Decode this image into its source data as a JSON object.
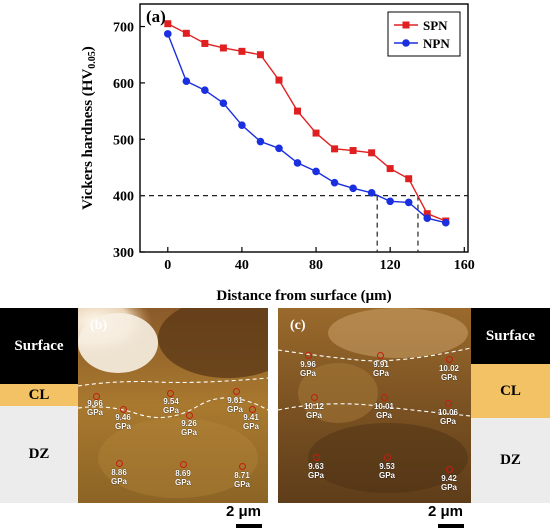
{
  "chart_data": {
    "type": "line",
    "panel_label": "(a)",
    "xlabel": "Distance from surface (μm)",
    "ylabel_main": "Vickers hardness (HV",
    "ylabel_sub": "0.05",
    "ylabel_end": ")",
    "xlim": [
      -15,
      162
    ],
    "ylim": [
      300,
      740
    ],
    "xticks": [
      0,
      40,
      80,
      120,
      160
    ],
    "yticks": [
      300,
      400,
      500,
      600,
      700
    ],
    "reference_line_y": 400,
    "reference_drops_x": [
      113,
      135
    ],
    "legend_position": "top-right",
    "series": [
      {
        "name": "SPN",
        "color": "#e02020",
        "marker": "square",
        "x": [
          0,
          10,
          20,
          30,
          40,
          50,
          60,
          70,
          80,
          90,
          100,
          110,
          120,
          130,
          140,
          150
        ],
        "y": [
          705,
          688,
          670,
          662,
          656,
          650,
          605,
          550,
          511,
          483,
          480,
          476,
          448,
          430,
          368,
          355
        ]
      },
      {
        "name": "NPN",
        "color": "#1a2fe0",
        "marker": "circle",
        "x": [
          0,
          10,
          20,
          30,
          40,
          50,
          60,
          70,
          80,
          90,
          100,
          110,
          120,
          130,
          140,
          150
        ],
        "y": [
          687,
          603,
          587,
          564,
          525,
          496,
          484,
          458,
          443,
          423,
          413,
          405,
          390,
          388,
          360,
          352
        ]
      }
    ]
  },
  "micrographs": {
    "left": {
      "label": "(b)",
      "layers": [
        {
          "label": "Surface",
          "color": "#000000",
          "text_color": "#ffffff"
        },
        {
          "label": "CL",
          "color": "#f2c265",
          "text_color": "#000000"
        },
        {
          "label": "DZ",
          "color": "#ececec",
          "text_color": "#000000"
        }
      ],
      "measurements": [
        {
          "value": "9.66",
          "unit": "GPa"
        },
        {
          "value": "9.46",
          "unit": "GPa"
        },
        {
          "value": "9.54",
          "unit": "GPa"
        },
        {
          "value": "9.26",
          "unit": "GPa"
        },
        {
          "value": "9.61",
          "unit": "GPa"
        },
        {
          "value": "9.41",
          "unit": "GPa"
        },
        {
          "value": "8.86",
          "unit": "GPa"
        },
        {
          "value": "8.69",
          "unit": "GPa"
        },
        {
          "value": "8.71",
          "unit": "GPa"
        }
      ],
      "scale_label": "2 μm"
    },
    "right": {
      "label": "(c)",
      "layers": [
        {
          "label": "Surface",
          "color": "#000000",
          "text_color": "#ffffff"
        },
        {
          "label": "CL",
          "color": "#f2c265",
          "text_color": "#000000"
        },
        {
          "label": "DZ",
          "color": "#ececec",
          "text_color": "#000000"
        }
      ],
      "measurements": [
        {
          "value": "9.96",
          "unit": "GPa"
        },
        {
          "value": "9.91",
          "unit": "GPa"
        },
        {
          "value": "10.02",
          "unit": "GPa"
        },
        {
          "value": "10.12",
          "unit": "GPa"
        },
        {
          "value": "10.01",
          "unit": "GPa"
        },
        {
          "value": "10.06",
          "unit": "GPa"
        },
        {
          "value": "9.63",
          "unit": "GPa"
        },
        {
          "value": "9.53",
          "unit": "GPa"
        },
        {
          "value": "9.42",
          "unit": "GPa"
        }
      ],
      "scale_label": "2 μm"
    }
  }
}
